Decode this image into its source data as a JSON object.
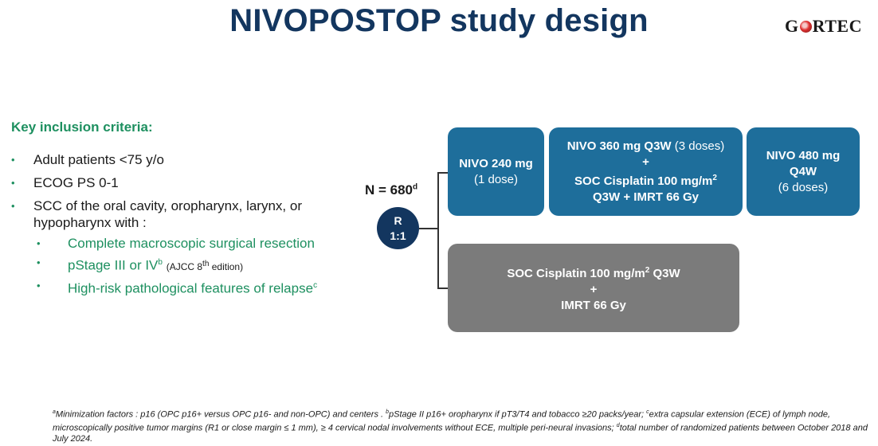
{
  "slide": {
    "title": "NIVOPOSTOP study design",
    "logo_text": "GORTEC"
  },
  "criteria": {
    "heading": "Key inclusion criteria:",
    "items": [
      "Adult patients <75 y/o",
      "ECOG PS 0-1",
      "SCC of the oral cavity, oropharynx, larynx, or hypopharynx with :"
    ],
    "subitems": {
      "resection": "Complete macroscopic surgical resection",
      "pstage_text": "pStage III or IV",
      "pstage_sup": "b",
      "pstage_note": "(AJCC 8",
      "pstage_note_sup": "th",
      "pstage_note_end": " edition)",
      "highrisk_text": "High-risk pathological features of relapse",
      "highrisk_sup": "c"
    }
  },
  "design": {
    "n_label": "N = 680",
    "n_sup": "d",
    "randomize_r": "R",
    "randomize_ratio": "1:1",
    "arm1": {
      "box1_line1": "NIVO 240 mg",
      "box1_line2": "(1 dose)",
      "box2_bold1": "NIVO 360 mg Q3W",
      "box2_normal1": " (3 doses)",
      "box2_plus": "+",
      "box2_bold2": "SOC Cisplatin 100 mg/m",
      "box2_sup": "2",
      "box2_bold3": "Q3W + IMRT 66 Gy",
      "box3_line1": "NIVO 480 mg",
      "box3_line2": "Q4W",
      "box3_line3": "(6 doses)"
    },
    "arm2": {
      "line1": "SOC Cisplatin 100 mg/m",
      "line1_sup": "2",
      "line1_end": " Q3W",
      "plus": "+",
      "line2": "IMRT 66 Gy"
    }
  },
  "footnote": {
    "a_sup": "a",
    "a_text": "Minimization factors : p16 (OPC p16+ versus OPC p16- and non-OPC) and centers . ",
    "b_sup": "b",
    "b_text": "pStage II p16+ oropharynx if pT3/T4 and tobacco ≥20 packs/year; ",
    "c_sup": "c",
    "c_text": "extra capsular extension (ECE) of lymph node, microscopically positive tumor margins (R1 or close margin ≤ 1 mm), ≥ 4 cervical nodal involvements without ECE, multiple peri-neural invasions; ",
    "d_sup": "d",
    "d_text": "total number of randomized patients between October 2018 and July 2024."
  },
  "colors": {
    "title": "#13365f",
    "accent_green": "#1e9060",
    "arm_blue": "#1e6e9b",
    "arm_grey": "#7b7b7b"
  }
}
